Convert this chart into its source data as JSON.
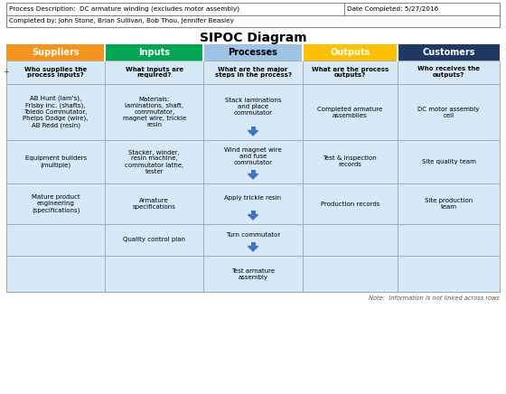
{
  "title": "SIPOC Diagram",
  "meta_line1": "Process Description:  DC armature winding (excludes motor assembly)",
  "meta_date": "Date Completed: 5/27/2016",
  "meta_line2": "Completed by: John Stone, Brian Sullivan, Bob Thou, Jennifer Beasley",
  "note": "Note:  Information is not linked across rows",
  "headers": [
    "Suppliers",
    "Inputs",
    "Processes",
    "Outputs",
    "Customers"
  ],
  "header_colors": [
    "#F7941D",
    "#00A651",
    "#9DC3E6",
    "#FFC000",
    "#1F3864"
  ],
  "header_text_colors": [
    "#FFFFFF",
    "#FFFFFF",
    "#000000",
    "#FFFFFF",
    "#FFFFFF"
  ],
  "sub_headers": [
    "Who supplies the\nprocess inputs?",
    "What inputs are\nrequired?",
    "What are the major\nsteps in the process?",
    "What are the process\noutputs?",
    "Who receives the\noutputs?"
  ],
  "col_bg": "#D6E9F8",
  "row_data": [
    [
      "AB Hunt (lam's),\nFrisby Inc. (shafts),\nToledo Commutator,\nPhelps Dodge (wire),\nAB Redd (resin)",
      "Materials:\nlaminations, shaft,\ncommutator,\nmagnet wire, trickle\nresin",
      "Stack laminations\nand place\ncommutator",
      "Completed armature\nassemblies",
      "DC motor assembly\ncell"
    ],
    [
      "Equipment builders\n(multiple)",
      "Stacker, winder,\nresin machine,\ncommutator lathe,\ntester",
      "Wind magnet wire\nand fuse\ncommutator",
      "Test & inspection\nrecords",
      "Site quality team"
    ],
    [
      "Mature product\nengineering\n(specifications)",
      "Armature\nspecifications",
      "Apply trickle resin",
      "Production records",
      "Site production\nteam"
    ],
    [
      "",
      "Quality control plan",
      "Turn commutator",
      "",
      ""
    ],
    [
      "",
      "",
      "Test armature\nassembly",
      "",
      ""
    ]
  ],
  "arrow_color": "#4472C4",
  "grid_color": "#AAAAAA",
  "border_color": "#888888"
}
